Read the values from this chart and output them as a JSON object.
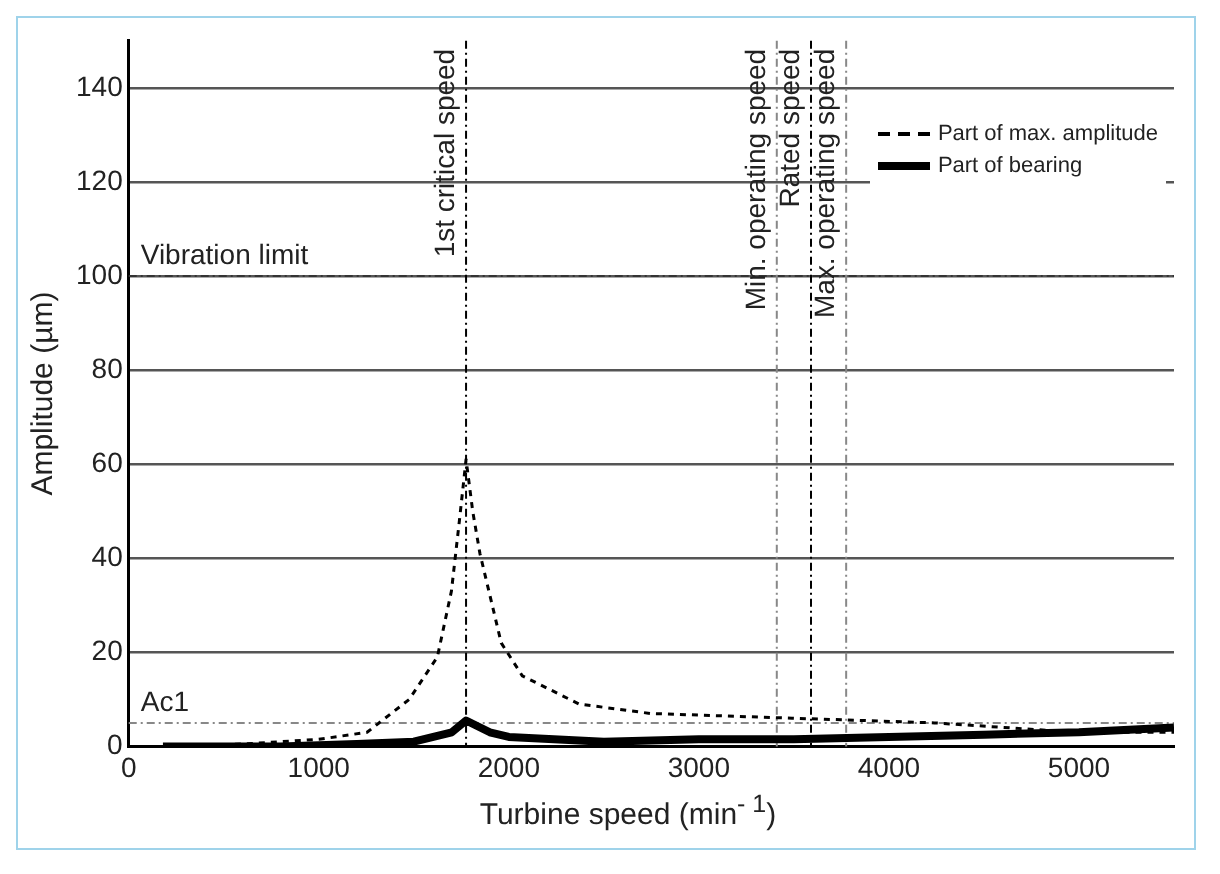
{
  "chart_data": {
    "type": "line",
    "xlabel": "Turbine speed (min$^{- 1}$)",
    "ylabel": "Amplitude (µm)",
    "xlim": [
      0,
      5500
    ],
    "xticks": [
      0,
      1000,
      2000,
      3000,
      4000,
      5000
    ],
    "ylim": [
      0,
      150
    ],
    "yticks": [
      0,
      20,
      40,
      60,
      80,
      100,
      120,
      140
    ],
    "grid": "y",
    "legend": "top right",
    "marker": "none",
    "series": [
      {
        "name": "Part of max. amplitude",
        "color": "#000000",
        "line_style": "dashed",
        "x": [
          180,
          600,
          1000,
          1254,
          1476,
          1624,
          1698,
          1740,
          1775,
          1810,
          1848,
          1960,
          2071,
          2370,
          2745,
          3490,
          4240,
          4990,
          5500
        ],
        "values": [
          0,
          0.5,
          1.5,
          3,
          10,
          19,
          33,
          48,
          61,
          50,
          41,
          22,
          15,
          9,
          7,
          6,
          5,
          3,
          3
        ]
      },
      {
        "name": "Part of bearing",
        "color": "#000000",
        "line_style": "solid",
        "x": [
          180,
          800,
          1200,
          1500,
          1700,
          1775,
          1900,
          2000,
          2500,
          3000,
          3500,
          4000,
          4500,
          5000,
          5500
        ],
        "values": [
          0,
          0,
          0.5,
          1,
          3,
          5.5,
          3,
          2,
          1,
          1.5,
          1.5,
          2,
          2.5,
          3,
          4
        ]
      }
    ],
    "ref_lines": [
      {
        "axis": "y",
        "value": 100,
        "label": "Vibration limit",
        "color": "#333333",
        "line_style": "dashed"
      },
      {
        "axis": "y",
        "value": 5,
        "label": "Ac1",
        "color": "#888888",
        "line_style": "dashed"
      },
      {
        "axis": "x",
        "value": 1775,
        "label": "1st critical speed",
        "color": "#000000",
        "line_style": "dashed"
      },
      {
        "axis": "x",
        "value": 3410,
        "label": "Min. operating speed",
        "color": "#888888",
        "line_style": "dashed"
      },
      {
        "axis": "x",
        "value": 3590,
        "label": "Rated speed",
        "color": "#000000",
        "line_style": "dashed"
      },
      {
        "axis": "x",
        "value": 3775,
        "label": "Max. operating speed",
        "color": "#888888",
        "line_style": "dashed"
      }
    ]
  }
}
